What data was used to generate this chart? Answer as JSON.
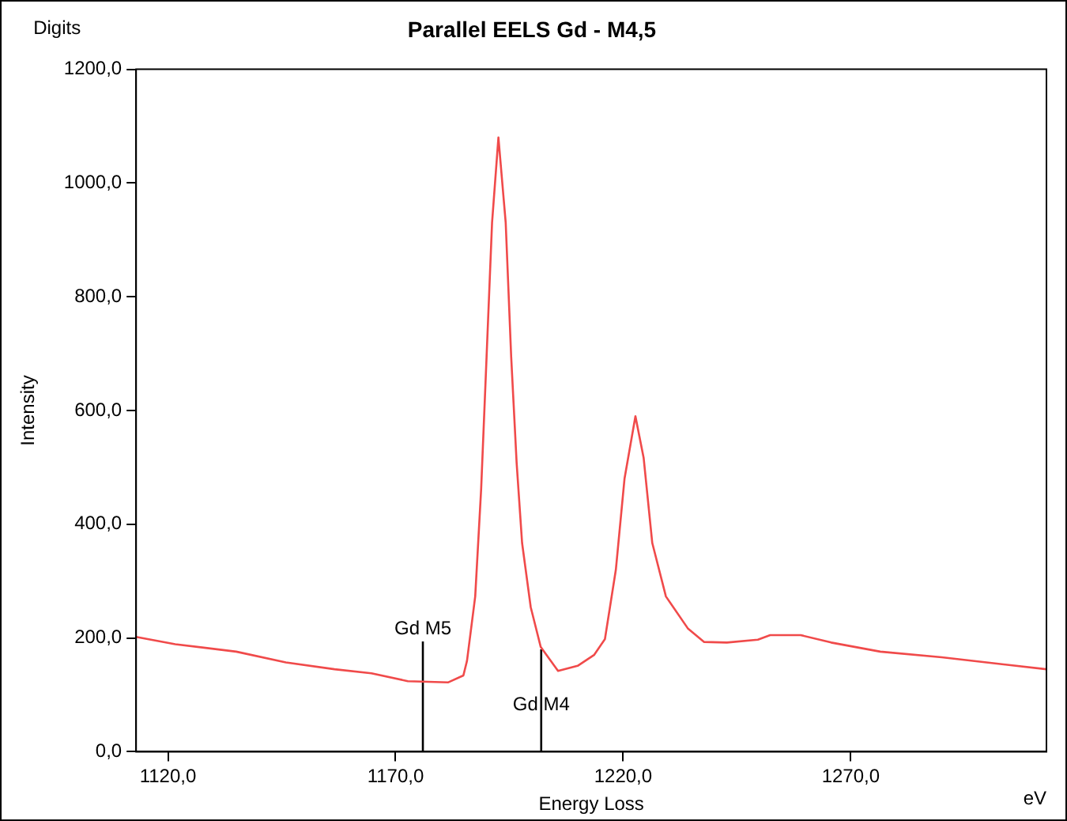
{
  "chart_data": {
    "type": "line",
    "title": "Parallel EELS Gd - M4,5",
    "xlabel": "Energy Loss",
    "ylabel": "Intensity",
    "annotations": [
      "Digits",
      "eV",
      {
        "text": "Gd M5",
        "x": 1176,
        "y": 194
      },
      {
        "text": "Gd M4",
        "x": 1202,
        "y": 60
      }
    ],
    "xlim": [
      1113,
      1313
    ],
    "xticks": [
      {
        "value": 1120,
        "label": "1120,0"
      },
      {
        "value": 1170,
        "label": "1170,0"
      },
      {
        "value": 1220,
        "label": "1220,0"
      },
      {
        "value": 1270,
        "label": "1270,0"
      }
    ],
    "ylim": [
      0,
      1200
    ],
    "yticks": [
      {
        "value": 0,
        "label": "0,0"
      },
      {
        "value": 200,
        "label": "200,0"
      },
      {
        "value": 400,
        "label": "400,0"
      },
      {
        "value": 600,
        "label": "600,0"
      },
      {
        "value": 800,
        "label": "800,0"
      },
      {
        "value": 1000,
        "label": "1000,0"
      },
      {
        "value": 1200,
        "label": "1200,0"
      }
    ],
    "grid": false,
    "legend": false,
    "marker": "none",
    "line_style": "solid",
    "series": [
      {
        "color": "#f04a4a",
        "x": [
          1113,
          1121.6,
          1135,
          1145.9,
          1156.6,
          1164.7,
          1172.7,
          1181.6,
          1184.9,
          1185.7,
          1187.5,
          1188.8,
          1190,
          1191.2,
          1192.6,
          1194.2,
          1195.4,
          1196.6,
          1197.8,
          1199.7,
          1201.9,
          1205.7,
          1210,
          1213.6,
          1216,
          1218.4,
          1220.3,
          1222.7,
          1224.5,
          1226.4,
          1229.4,
          1234.2,
          1237.8,
          1242.8,
          1249.6,
          1252.3,
          1259,
          1265.7,
          1276.5,
          1290,
          1302.1,
          1313
        ],
        "values": [
          202,
          189,
          176,
          157,
          145,
          138,
          124,
          122,
          134,
          160,
          273,
          461,
          695,
          930,
          1080,
          930,
          695,
          508,
          367,
          254,
          184,
          142,
          151,
          170,
          198,
          320,
          480,
          590,
          517,
          367,
          273,
          217,
          193,
          192,
          197,
          205,
          205,
          192,
          176,
          166,
          155,
          145
        ]
      },
      {
        "color": "#000000",
        "x": [
          1176,
          1176
        ],
        "values": [
          0,
          194
        ]
      },
      {
        "color": "#000000",
        "x": [
          1202,
          1202
        ],
        "values": [
          0,
          180
        ]
      }
    ]
  }
}
